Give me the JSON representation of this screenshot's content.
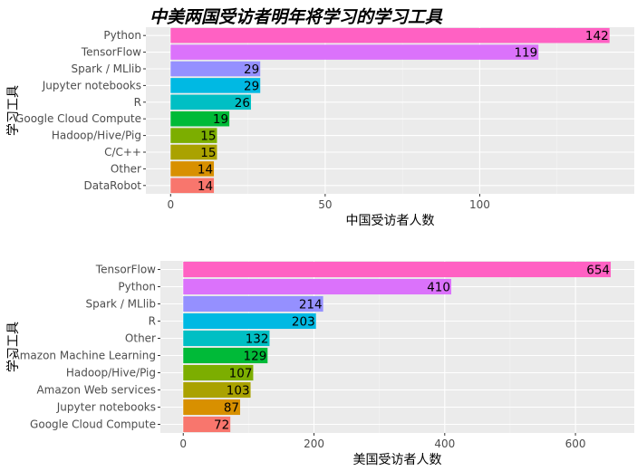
{
  "title": "中美两国受访者明年将学习的学习工具",
  "chart_data": [
    {
      "type": "bar",
      "orientation": "horizontal",
      "xlabel": "中国受访者人数",
      "ylabel": "学习工具",
      "xlim": [
        -8,
        150
      ],
      "xticks": [
        0,
        50,
        100
      ],
      "grid": true,
      "categories": [
        "Python",
        "TensorFlow",
        "Spark / MLlib",
        "Jupyter notebooks",
        "R",
        "Google Cloud Compute",
        "Hadoop/Hive/Pig",
        "C/C++",
        "Other",
        "DataRobot"
      ],
      "values": [
        142,
        119,
        29,
        29,
        26,
        19,
        15,
        15,
        14,
        14
      ],
      "colors": [
        "#FF61C3",
        "#DB72FB",
        "#9590FF",
        "#00B9E3",
        "#00BFC4",
        "#00BA38",
        "#7CAE00",
        "#AAA200",
        "#D89000",
        "#F8766D"
      ]
    },
    {
      "type": "bar",
      "orientation": "horizontal",
      "xlabel": "美国受访者人数",
      "ylabel": "学习工具",
      "xlim": [
        -35,
        690
      ],
      "xticks": [
        0,
        200,
        400,
        600
      ],
      "grid": true,
      "categories": [
        "TensorFlow",
        "Python",
        "Spark / MLlib",
        "R",
        "Other",
        "Amazon Machine Learning",
        "Hadoop/Hive/Pig",
        "Amazon Web services",
        "Jupyter notebooks",
        "Google Cloud Compute"
      ],
      "values": [
        654,
        410,
        214,
        203,
        132,
        129,
        107,
        103,
        87,
        72
      ],
      "colors": [
        "#FF61C3",
        "#DB72FB",
        "#9590FF",
        "#00B9E3",
        "#00BFC4",
        "#00BA38",
        "#7CAE00",
        "#AAA200",
        "#D89000",
        "#F8766D"
      ]
    }
  ]
}
